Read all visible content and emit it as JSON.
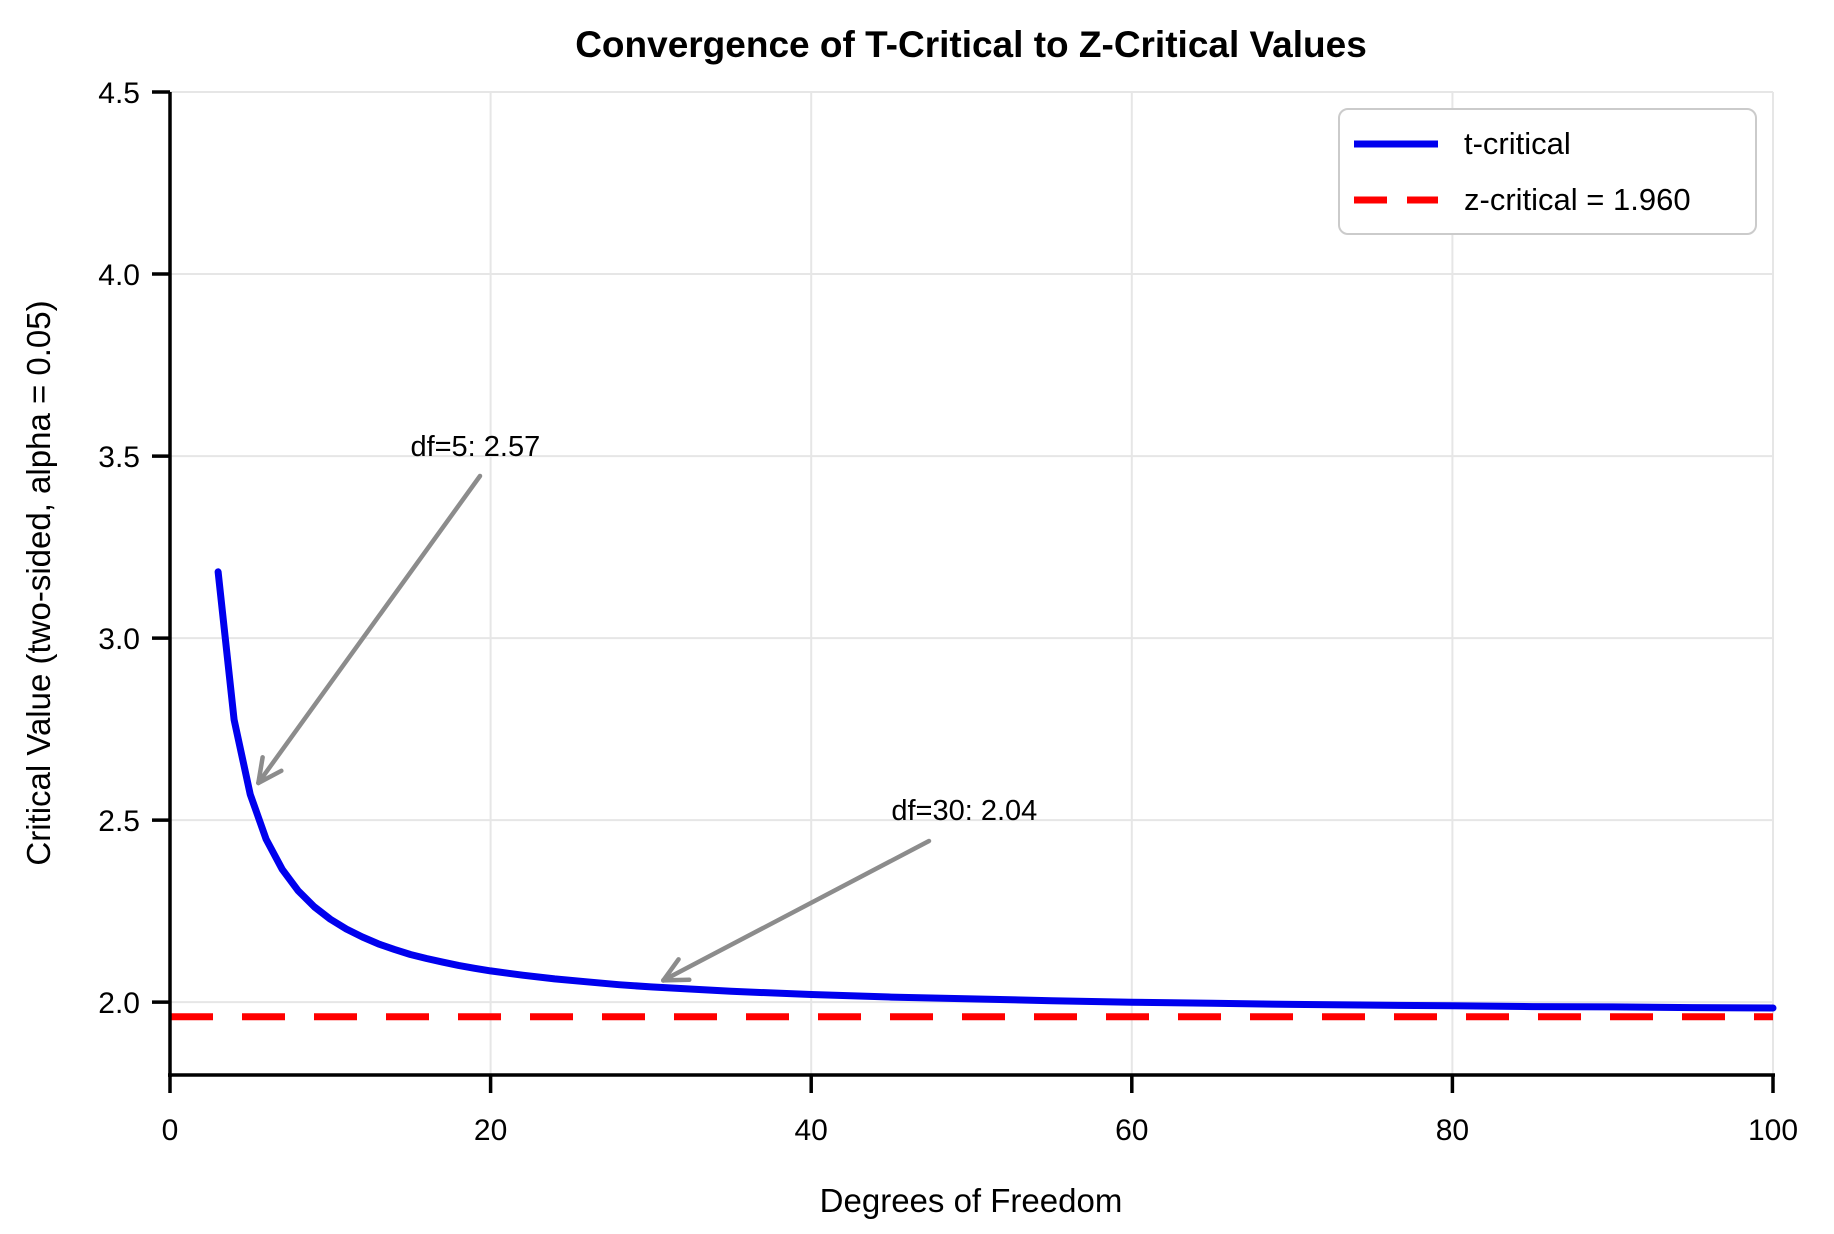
{
  "chart_data": {
    "type": "line",
    "title": "Convergence of T-Critical to Z-Critical Values",
    "xlabel": "Degrees of Freedom",
    "ylabel": "Critical Value (two-sided, alpha = 0.05)",
    "xlim": [
      0,
      100
    ],
    "ylim": [
      1.8,
      4.5
    ],
    "x_ticks": [
      0,
      20,
      40,
      60,
      80,
      100
    ],
    "y_ticks": [
      2.0,
      2.5,
      3.0,
      3.5,
      4.0,
      4.5
    ],
    "grid": true,
    "legend": {
      "position": "upper right",
      "entries": [
        {
          "label": "t-critical",
          "color": "#0000EE",
          "style": "solid"
        },
        {
          "label": "z-critical = 1.960",
          "color": "#FF0000",
          "style": "dashed"
        }
      ]
    },
    "z_critical": 1.96,
    "series": [
      {
        "name": "t-critical",
        "color": "#0000EE",
        "x": [
          3,
          4,
          5,
          6,
          7,
          8,
          9,
          10,
          11,
          12,
          13,
          14,
          15,
          16,
          17,
          18,
          19,
          20,
          22,
          24,
          26,
          28,
          30,
          35,
          40,
          45,
          50,
          55,
          60,
          65,
          70,
          75,
          80,
          85,
          90,
          95,
          100
        ],
        "y": [
          3.182,
          2.776,
          2.571,
          2.447,
          2.365,
          2.306,
          2.262,
          2.228,
          2.201,
          2.179,
          2.16,
          2.145,
          2.131,
          2.12,
          2.11,
          2.101,
          2.093,
          2.086,
          2.074,
          2.064,
          2.056,
          2.048,
          2.042,
          2.03,
          2.021,
          2.014,
          2.009,
          2.004,
          2.0,
          1.997,
          1.994,
          1.992,
          1.99,
          1.988,
          1.987,
          1.985,
          1.984
        ]
      }
    ],
    "annotations": [
      {
        "label": "df=5: 2.57",
        "point_x": 5,
        "point_y": 2.571,
        "text_x": 15,
        "text_y": 3.5
      },
      {
        "label": "df=30: 2.04",
        "point_x": 30,
        "point_y": 2.042,
        "text_x": 45,
        "text_y": 2.5
      }
    ],
    "colors": {
      "grid": "#E6E6E6",
      "arrow": "#8C8C8C",
      "axis": "#000000"
    }
  }
}
